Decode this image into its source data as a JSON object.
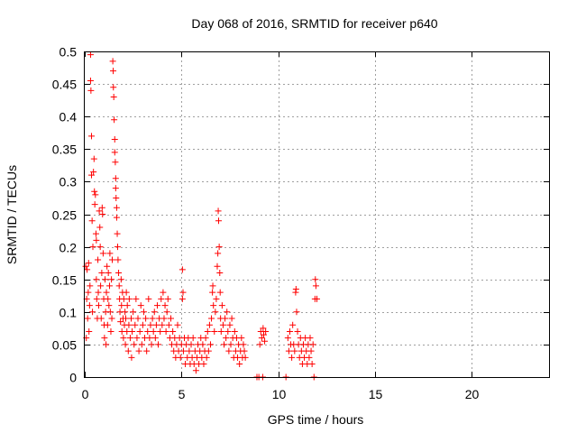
{
  "chart_data": {
    "type": "scatter",
    "title": "Day 068 of 2016, SRMTID for receiver p640",
    "xlabel": "GPS time / hours",
    "ylabel": "SRMTID / TECUs",
    "xlim": [
      0,
      24
    ],
    "ylim": [
      0,
      0.5
    ],
    "xticks": [
      0,
      5,
      10,
      15,
      20
    ],
    "xtick_labels": [
      "0",
      "5",
      "10",
      "15",
      "20"
    ],
    "yticks": [
      0,
      0.05,
      0.1,
      0.15,
      0.2,
      0.25,
      0.3,
      0.35,
      0.4,
      0.45,
      0.5
    ],
    "ytick_labels": [
      "0",
      "0.05",
      "0.1",
      "0.15",
      "0.2",
      "0.25",
      "0.3",
      "0.35",
      "0.4",
      "0.45",
      "0.5"
    ],
    "grid": true,
    "marker": "+",
    "color": "#ff0000",
    "series": [
      {
        "name": "SRMTID",
        "points": [
          [
            0.05,
            0.17
          ],
          [
            0.08,
            0.06
          ],
          [
            0.1,
            0.12
          ],
          [
            0.12,
            0.165
          ],
          [
            0.15,
            0.09
          ],
          [
            0.18,
            0.13
          ],
          [
            0.2,
            0.175
          ],
          [
            0.22,
            0.07
          ],
          [
            0.25,
            0.11
          ],
          [
            0.27,
            0.14
          ],
          [
            0.3,
            0.495
          ],
          [
            0.3,
            0.455
          ],
          [
            0.32,
            0.44
          ],
          [
            0.35,
            0.37
          ],
          [
            0.35,
            0.31
          ],
          [
            0.38,
            0.24
          ],
          [
            0.4,
            0.1
          ],
          [
            0.42,
            0.2
          ],
          [
            0.45,
            0.315
          ],
          [
            0.48,
            0.335
          ],
          [
            0.5,
            0.285
          ],
          [
            0.52,
            0.265
          ],
          [
            0.55,
            0.28
          ],
          [
            0.58,
            0.22
          ],
          [
            0.6,
            0.21
          ],
          [
            0.6,
            0.15
          ],
          [
            0.62,
            0.12
          ],
          [
            0.65,
            0.09
          ],
          [
            0.68,
            0.18
          ],
          [
            0.7,
            0.13
          ],
          [
            0.72,
            0.11
          ],
          [
            0.75,
            0.255
          ],
          [
            0.78,
            0.23
          ],
          [
            0.8,
            0.2
          ],
          [
            0.82,
            0.14
          ],
          [
            0.85,
            0.09
          ],
          [
            0.88,
            0.16
          ],
          [
            0.9,
            0.26
          ],
          [
            0.92,
            0.25
          ],
          [
            0.95,
            0.19
          ],
          [
            0.98,
            0.12
          ],
          [
            1.0,
            0.08
          ],
          [
            1.02,
            0.06
          ],
          [
            1.05,
            0.15
          ],
          [
            1.08,
            0.1
          ],
          [
            1.1,
            0.05
          ],
          [
            1.12,
            0.13
          ],
          [
            1.15,
            0.17
          ],
          [
            1.18,
            0.08
          ],
          [
            1.2,
            0.12
          ],
          [
            1.22,
            0.16
          ],
          [
            1.25,
            0.11
          ],
          [
            1.28,
            0.14
          ],
          [
            1.3,
            0.19
          ],
          [
            1.32,
            0.1
          ],
          [
            1.35,
            0.07
          ],
          [
            1.38,
            0.15
          ],
          [
            1.4,
            0.09
          ],
          [
            1.42,
            0.18
          ],
          [
            1.45,
            0.485
          ],
          [
            1.47,
            0.47
          ],
          [
            1.48,
            0.445
          ],
          [
            1.5,
            0.43
          ],
          [
            1.52,
            0.395
          ],
          [
            1.55,
            0.365
          ],
          [
            1.55,
            0.345
          ],
          [
            1.58,
            0.33
          ],
          [
            1.6,
            0.305
          ],
          [
            1.6,
            0.29
          ],
          [
            1.62,
            0.275
          ],
          [
            1.65,
            0.26
          ],
          [
            1.65,
            0.245
          ],
          [
            1.68,
            0.22
          ],
          [
            1.7,
            0.2
          ],
          [
            1.72,
            0.18
          ],
          [
            1.75,
            0.16
          ],
          [
            1.78,
            0.14
          ],
          [
            1.8,
            0.12
          ],
          [
            1.82,
            0.1
          ],
          [
            1.85,
            0.085
          ],
          [
            1.88,
            0.15
          ],
          [
            1.9,
            0.11
          ],
          [
            1.92,
            0.07
          ],
          [
            1.95,
            0.13
          ],
          [
            1.98,
            0.09
          ],
          [
            2.0,
            0.06
          ],
          [
            2.02,
            0.12
          ],
          [
            2.05,
            0.08
          ],
          [
            2.08,
            0.1
          ],
          [
            2.1,
            0.05
          ],
          [
            2.12,
            0.09
          ],
          [
            2.15,
            0.13
          ],
          [
            2.18,
            0.07
          ],
          [
            2.2,
            0.11
          ],
          [
            2.25,
            0.04
          ],
          [
            2.28,
            0.08
          ],
          [
            2.3,
            0.12
          ],
          [
            2.35,
            0.06
          ],
          [
            2.4,
            0.09
          ],
          [
            2.42,
            0.03
          ],
          [
            2.45,
            0.07
          ],
          [
            2.5,
            0.1
          ],
          [
            2.55,
            0.05
          ],
          [
            2.6,
            0.08
          ],
          [
            2.65,
            0.12
          ],
          [
            2.7,
            0.06
          ],
          [
            2.75,
            0.09
          ],
          [
            2.8,
            0.04
          ],
          [
            2.85,
            0.07
          ],
          [
            2.9,
            0.11
          ],
          [
            2.95,
            0.05
          ],
          [
            3.0,
            0.08
          ],
          [
            3.05,
            0.1
          ],
          [
            3.1,
            0.06
          ],
          [
            3.15,
            0.09
          ],
          [
            3.2,
            0.04
          ],
          [
            3.25,
            0.07
          ],
          [
            3.3,
            0.12
          ],
          [
            3.35,
            0.06
          ],
          [
            3.4,
            0.08
          ],
          [
            3.45,
            0.05
          ],
          [
            3.5,
            0.09
          ],
          [
            3.55,
            0.07
          ],
          [
            3.6,
            0.1
          ],
          [
            3.65,
            0.06
          ],
          [
            3.7,
            0.08
          ],
          [
            3.75,
            0.11
          ],
          [
            3.8,
            0.05
          ],
          [
            3.85,
            0.09
          ],
          [
            3.9,
            0.07
          ],
          [
            3.95,
            0.12
          ],
          [
            4.0,
            0.08
          ],
          [
            4.05,
            0.13
          ],
          [
            4.1,
            0.09
          ],
          [
            4.15,
            0.11
          ],
          [
            4.2,
            0.07
          ],
          [
            4.25,
            0.1
          ],
          [
            4.3,
            0.12
          ],
          [
            4.35,
            0.08
          ],
          [
            4.4,
            0.06
          ],
          [
            4.45,
            0.09
          ],
          [
            4.5,
            0.05
          ],
          [
            4.55,
            0.07
          ],
          [
            4.6,
            0.04
          ],
          [
            4.65,
            0.06
          ],
          [
            4.7,
            0.03
          ],
          [
            4.75,
            0.05
          ],
          [
            4.8,
            0.08
          ],
          [
            4.85,
            0.04
          ],
          [
            4.9,
            0.06
          ],
          [
            4.95,
            0.03
          ],
          [
            5.0,
            0.05
          ],
          [
            5.05,
            0.12
          ],
          [
            5.05,
            0.165
          ],
          [
            5.08,
            0.13
          ],
          [
            5.1,
            0.04
          ],
          [
            5.15,
            0.06
          ],
          [
            5.2,
            0.02
          ],
          [
            5.25,
            0.05
          ],
          [
            5.3,
            0.03
          ],
          [
            5.35,
            0.06
          ],
          [
            5.4,
            0.04
          ],
          [
            5.45,
            0.02
          ],
          [
            5.5,
            0.05
          ],
          [
            5.55,
            0.03
          ],
          [
            5.6,
            0.06
          ],
          [
            5.65,
            0.02
          ],
          [
            5.7,
            0.04
          ],
          [
            5.75,
            0.01
          ],
          [
            5.8,
            0.03
          ],
          [
            5.85,
            0.05
          ],
          [
            5.9,
            0.02
          ],
          [
            5.95,
            0.04
          ],
          [
            6.0,
            0.06
          ],
          [
            6.05,
            0.03
          ],
          [
            6.1,
            0.05
          ],
          [
            6.15,
            0.02
          ],
          [
            6.2,
            0.04
          ],
          [
            6.25,
            0.06
          ],
          [
            6.3,
            0.03
          ],
          [
            6.35,
            0.07
          ],
          [
            6.4,
            0.04
          ],
          [
            6.45,
            0.08
          ],
          [
            6.5,
            0.05
          ],
          [
            6.55,
            0.09
          ],
          [
            6.6,
            0.13
          ],
          [
            6.62,
            0.14
          ],
          [
            6.65,
            0.11
          ],
          [
            6.7,
            0.07
          ],
          [
            6.75,
            0.1
          ],
          [
            6.8,
            0.12
          ],
          [
            6.85,
            0.17
          ],
          [
            6.88,
            0.19
          ],
          [
            6.9,
            0.255
          ],
          [
            6.92,
            0.24
          ],
          [
            6.95,
            0.2
          ],
          [
            6.98,
            0.16
          ],
          [
            7.0,
            0.13
          ],
          [
            7.02,
            0.09
          ],
          [
            7.05,
            0.07
          ],
          [
            7.1,
            0.11
          ],
          [
            7.15,
            0.08
          ],
          [
            7.2,
            0.05
          ],
          [
            7.25,
            0.09
          ],
          [
            7.3,
            0.06
          ],
          [
            7.35,
            0.1
          ],
          [
            7.4,
            0.07
          ],
          [
            7.45,
            0.04
          ],
          [
            7.5,
            0.08
          ],
          [
            7.55,
            0.05
          ],
          [
            7.6,
            0.09
          ],
          [
            7.65,
            0.06
          ],
          [
            7.7,
            0.03
          ],
          [
            7.75,
            0.07
          ],
          [
            7.8,
            0.04
          ],
          [
            7.85,
            0.06
          ],
          [
            7.9,
            0.03
          ],
          [
            7.95,
            0.05
          ],
          [
            8.0,
            0.02
          ],
          [
            8.05,
            0.04
          ],
          [
            8.1,
            0.06
          ],
          [
            8.15,
            0.03
          ],
          [
            8.2,
            0.05
          ],
          [
            8.25,
            0.04
          ],
          [
            8.3,
            0.03
          ],
          [
            8.9,
            0.0
          ],
          [
            9.0,
            0.0
          ],
          [
            9.05,
            0.05
          ],
          [
            9.1,
            0.07
          ],
          [
            9.15,
            0.06
          ],
          [
            9.2,
            0.0
          ],
          [
            9.22,
            0.075
          ],
          [
            9.25,
            0.065
          ],
          [
            9.3,
            0.055
          ],
          [
            9.35,
            0.07
          ],
          [
            10.4,
            0.0
          ],
          [
            10.5,
            0.06
          ],
          [
            10.55,
            0.04
          ],
          [
            10.6,
            0.07
          ],
          [
            10.65,
            0.05
          ],
          [
            10.7,
            0.03
          ],
          [
            10.75,
            0.08
          ],
          [
            10.8,
            0.05
          ],
          [
            10.85,
            0.04
          ],
          [
            10.9,
            0.13
          ],
          [
            10.92,
            0.135
          ],
          [
            10.95,
            0.1
          ],
          [
            11.0,
            0.07
          ],
          [
            11.05,
            0.05
          ],
          [
            11.1,
            0.03
          ],
          [
            11.15,
            0.06
          ],
          [
            11.2,
            0.04
          ],
          [
            11.25,
            0.02
          ],
          [
            11.3,
            0.05
          ],
          [
            11.35,
            0.03
          ],
          [
            11.4,
            0.06
          ],
          [
            11.45,
            0.04
          ],
          [
            11.5,
            0.02
          ],
          [
            11.55,
            0.05
          ],
          [
            11.6,
            0.03
          ],
          [
            11.65,
            0.06
          ],
          [
            11.7,
            0.04
          ],
          [
            11.75,
            0.02
          ],
          [
            11.8,
            0.05
          ],
          [
            11.85,
            0.0
          ],
          [
            11.9,
            0.12
          ],
          [
            11.92,
            0.15
          ],
          [
            11.95,
            0.14
          ],
          [
            12.0,
            0.12
          ]
        ]
      }
    ]
  }
}
